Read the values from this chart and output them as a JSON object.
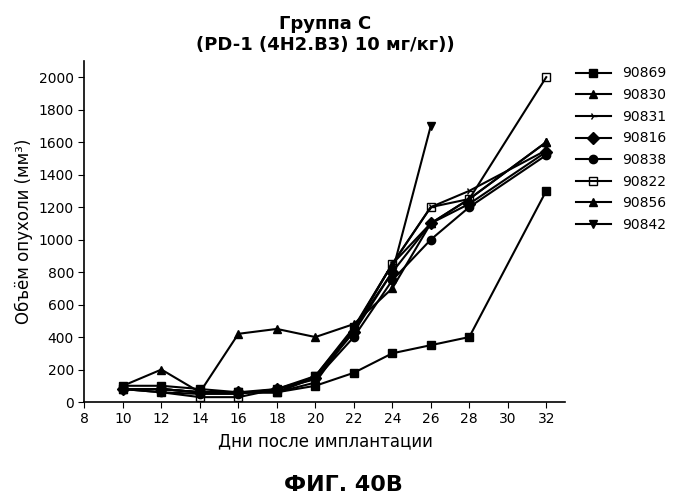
{
  "title_line1": "Группа С",
  "title_line2": "(PD-1 (4H2.B3) 10 мг/кг))",
  "xlabel": "Дни после имплантации",
  "ylabel": "Объём опухоли (мм³)",
  "fig_label": "ФИГ. 40В",
  "xticks": [
    8,
    10,
    12,
    14,
    16,
    18,
    20,
    22,
    24,
    26,
    28,
    30,
    32
  ],
  "yticks": [
    0,
    200,
    400,
    600,
    800,
    1000,
    1200,
    1400,
    1600,
    1800,
    2000
  ],
  "xlim": [
    8,
    33
  ],
  "ylim": [
    0,
    2100
  ],
  "series": [
    {
      "label": "90869",
      "marker": "s",
      "x": [
        10,
        12,
        14,
        16,
        18,
        20,
        22,
        24,
        26,
        28,
        32
      ],
      "y": [
        100,
        100,
        80,
        60,
        60,
        100,
        180,
        300,
        350,
        400,
        1300
      ]
    },
    {
      "label": "90830",
      "marker": "^",
      "x": [
        10,
        12,
        14,
        16,
        18,
        20,
        22,
        24,
        26,
        28,
        32
      ],
      "y": [
        80,
        80,
        60,
        60,
        60,
        120,
        450,
        850,
        1100,
        1250,
        1600
      ]
    },
    {
      "label": "90831",
      "marker": "3",
      "x": [
        10,
        12,
        14,
        16,
        18,
        20,
        22,
        24,
        26,
        28,
        32
      ],
      "y": [
        80,
        80,
        60,
        60,
        60,
        150,
        450,
        850,
        1200,
        1300,
        1550
      ]
    },
    {
      "label": "90816",
      "marker": "D",
      "x": [
        10,
        12,
        14,
        16,
        18,
        20,
        22,
        24,
        26,
        28,
        32
      ],
      "y": [
        80,
        80,
        60,
        60,
        80,
        150,
        430,
        800,
        1100,
        1220,
        1540
      ]
    },
    {
      "label": "90838",
      "marker": "o",
      "x": [
        10,
        12,
        14,
        16,
        18,
        20,
        22,
        24,
        26,
        28,
        32
      ],
      "y": [
        80,
        60,
        50,
        50,
        80,
        140,
        400,
        750,
        1000,
        1200,
        1520
      ]
    },
    {
      "label": "90822",
      "marker": "s",
      "x": [
        10,
        12,
        14,
        16,
        18,
        20,
        22,
        24,
        26,
        28,
        32
      ],
      "y": [
        80,
        60,
        30,
        30,
        80,
        160,
        460,
        850,
        1200,
        1250,
        2000
      ]
    },
    {
      "label": "90856",
      "marker": "^",
      "x": [
        10,
        12,
        14,
        16,
        18,
        20,
        22,
        24,
        26,
        28,
        32
      ],
      "y": [
        100,
        200,
        60,
        420,
        450,
        400,
        480,
        700,
        1100,
        1250,
        1600
      ]
    },
    {
      "label": "90842",
      "marker": "v",
      "x": [
        10,
        12,
        14,
        16,
        18,
        20,
        22,
        24,
        26
      ],
      "y": [
        80,
        80,
        60,
        60,
        60,
        160,
        450,
        800,
        1700
      ]
    }
  ],
  "markers_filled": [
    true,
    true,
    true,
    true,
    true,
    false,
    true,
    true
  ],
  "line_color": "#000000",
  "line_width": 1.5,
  "marker_size": 6,
  "title_fontsize": 13,
  "axis_label_fontsize": 12,
  "tick_fontsize": 10,
  "legend_fontsize": 10,
  "fig_label_fontsize": 16
}
